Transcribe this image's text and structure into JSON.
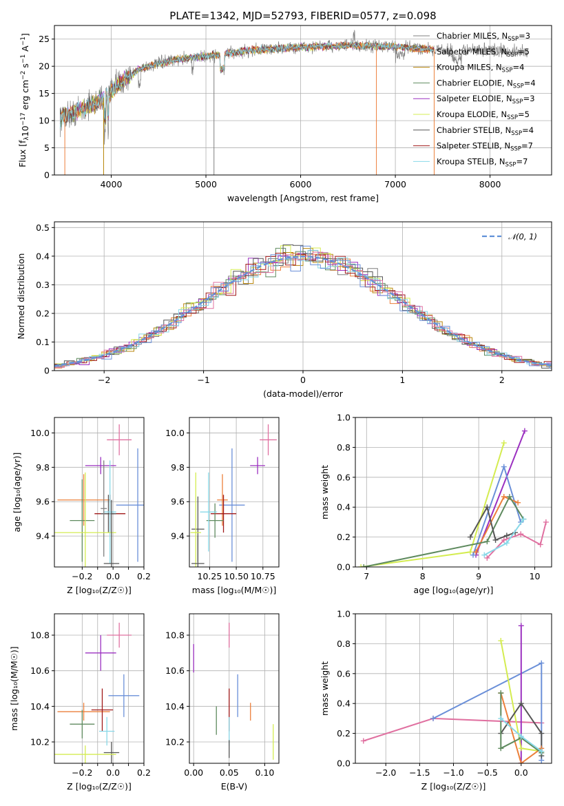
{
  "figure": {
    "title": "PLATE=1342, MJD=52793, FIBERID=0577, z=0.098"
  },
  "colors": {
    "chabrier_miles": "#7f7f7f",
    "salpeter_miles": "#ec7f3a",
    "kroupa_miles": "#b8860b",
    "chabrier_elodie": "#5e8a5e",
    "salpeter_elodie": "#9b30c0",
    "kroupa_elodie": "#d4ec50",
    "chabrier_stelib": "#555555",
    "salpeter_stelib": "#a01818",
    "kroupa_stelib": "#88d8e8",
    "normal_curve": "#6090d8",
    "extra_blue": "#6a8fd8",
    "extra_pink": "#e070a0"
  },
  "chart_data": [
    {
      "id": "spectrum",
      "type": "line",
      "title": "PLATE=1342, MJD=52793, FIBERID=0577, z=0.098",
      "xlabel": "wavelength [Angstrom, rest frame]",
      "ylabel_parts": [
        "Flux [f",
        "λ",
        "10",
        "−17",
        " erg cm",
        "−2",
        " s",
        "−1",
        " A",
        "−1",
        "]"
      ],
      "xlim": [
        3400,
        8650
      ],
      "ylim": [
        0,
        27.5
      ],
      "xticks": [
        4000,
        5000,
        6000,
        7000,
        8000
      ],
      "yticks": [
        0,
        5,
        10,
        15,
        20,
        25
      ],
      "legend": [
        {
          "prefix": "Chabrier MILES, N",
          "sub": "SSP",
          "suffix": "=3",
          "color_key": "chabrier_miles"
        },
        {
          "prefix": "Salpeter MILES, N",
          "sub": "SSP",
          "suffix": "=5",
          "color_key": "salpeter_miles"
        },
        {
          "prefix": "Kroupa MILES, N",
          "sub": "SSP",
          "suffix": "=4",
          "color_key": "kroupa_miles"
        },
        {
          "prefix": "Chabrier ELODIE, N",
          "sub": "SSP",
          "suffix": "=4",
          "color_key": "chabrier_elodie"
        },
        {
          "prefix": "Salpeter ELODIE, N",
          "sub": "SSP",
          "suffix": "=3",
          "color_key": "salpeter_elodie"
        },
        {
          "prefix": "Kroupa ELODIE, N",
          "sub": "SSP",
          "suffix": "=5",
          "color_key": "kroupa_elodie"
        },
        {
          "prefix": "Chabrier STELIB, N",
          "sub": "SSP",
          "suffix": "=4",
          "color_key": "chabrier_stelib"
        },
        {
          "prefix": "Salpeter STELIB, N",
          "sub": "SSP",
          "suffix": "=7",
          "color_key": "salpeter_stelib"
        },
        {
          "prefix": "Kroupa STELIB, N",
          "sub": "SSP",
          "suffix": "=7",
          "color_key": "kroupa_stelib"
        }
      ],
      "continuum": [
        [
          3460,
          10.5
        ],
        [
          3600,
          11.5
        ],
        [
          3800,
          13
        ],
        [
          3950,
          14.5
        ],
        [
          4100,
          17
        ],
        [
          4300,
          19.5
        ],
        [
          4500,
          20.5
        ],
        [
          4800,
          21.5
        ],
        [
          5100,
          22
        ],
        [
          5500,
          23
        ],
        [
          6000,
          23.5
        ],
        [
          6500,
          23.8
        ],
        [
          7000,
          23.6
        ],
        [
          7500,
          23
        ],
        [
          8000,
          23
        ],
        [
          8400,
          22.5
        ]
      ],
      "spectrum_range": [
        3460,
        8400
      ],
      "model_range": [
        3460,
        7410
      ],
      "spikes": [
        {
          "x": 3510,
          "color_key": "salpeter_miles",
          "low": 0
        },
        {
          "x": 3920,
          "color_key": "kroupa_miles",
          "low": 0
        },
        {
          "x": 5085,
          "color_key": "chabrier_miles",
          "low": 0
        },
        {
          "x": 6800,
          "color_key": "salpeter_miles",
          "low": 0
        },
        {
          "x": 7410,
          "color_key": "salpeter_miles",
          "low": 0
        }
      ]
    },
    {
      "id": "residuals",
      "type": "bar",
      "xlabel": "(data-model)/error",
      "ylabel": "Normed distribution",
      "xlim": [
        -2.5,
        2.5
      ],
      "ylim": [
        0,
        0.52
      ],
      "xticks": [
        -2,
        -1,
        0,
        1,
        2
      ],
      "xtick_labels": [
        "−2",
        "−1",
        "0",
        "1",
        "2"
      ],
      "yticks": [
        0.0,
        0.1,
        0.2,
        0.3,
        0.4,
        0.5
      ],
      "legend": [
        {
          "label": "𝒩(0, 1)",
          "color_key": "normal_curve"
        }
      ],
      "bin_width": 0.1
    },
    {
      "id": "age_vs_Z",
      "type": "scatter",
      "xlabel": "Z [log₁₀(Z/Z☉)]",
      "ylabel": "age  [log₁₀(age/yr)]",
      "xlim": [
        -0.38,
        0.2
      ],
      "ylim": [
        9.22,
        10.09
      ],
      "xticks": [
        -0.2,
        -0.1,
        0.0,
        0.1,
        0.2
      ],
      "xtick_labels": [
        "−0.2",
        "",
        "0.0",
        "",
        "0.2"
      ],
      "yticks": [
        9.4,
        9.6,
        9.8,
        10.0
      ],
      "ytick_labels": [
        "9.4",
        "9.6",
        "9.8",
        "10.0"
      ],
      "points": [
        {
          "x": 0.04,
          "y": 9.96,
          "xerr": 0.08,
          "yerr": 0.09,
          "color_key": "extra_pink"
        },
        {
          "x": -0.08,
          "y": 9.81,
          "xerr": 0.1,
          "yerr": 0.05,
          "color_key": "salpeter_elodie"
        },
        {
          "x": 0.16,
          "y": 9.58,
          "xerr": 0.14,
          "yerr": 0.33,
          "color_key": "extra_blue"
        },
        {
          "x": -0.19,
          "y": 9.61,
          "xerr": 0.17,
          "yerr": 0.15,
          "color_key": "salpeter_miles"
        },
        {
          "x": -0.02,
          "y": 9.53,
          "xerr": 0.1,
          "yerr": 0.11,
          "color_key": "salpeter_stelib"
        },
        {
          "x": -0.2,
          "y": 9.49,
          "xerr": 0.08,
          "yerr": 0.24,
          "color_key": "chabrier_elodie"
        },
        {
          "x": -0.03,
          "y": 9.53,
          "xerr": 0.05,
          "yerr": 0.11,
          "color_key": "chabrier_stelib"
        },
        {
          "x": -0.02,
          "y": 9.54,
          "xerr": 0.04,
          "yerr": 0.3,
          "color_key": "kroupa_stelib"
        },
        {
          "x": -0.06,
          "y": 9.56,
          "xerr": 0.02,
          "yerr": 0.28,
          "color_key": "chabrier_miles"
        },
        {
          "x": -0.18,
          "y": 9.42,
          "xerr": 0.2,
          "yerr": 0.35,
          "color_key": "kroupa_elodie"
        },
        {
          "x": -0.01,
          "y": 9.24,
          "xerr": 0.05,
          "yerr": 0.37,
          "color_key": "chabrier_stelib"
        }
      ]
    },
    {
      "id": "age_vs_mass",
      "type": "scatter",
      "xlabel": "mass [log₁₀(M/M☉)]",
      "ylabel": "",
      "xlim": [
        10.06,
        10.9
      ],
      "ylim": [
        9.22,
        10.09
      ],
      "xticks": [
        10.25,
        10.5,
        10.75
      ],
      "xtick_labels": [
        "10.25",
        "10.50",
        "10.75"
      ],
      "yticks": [
        9.4,
        9.6,
        9.8,
        10.0
      ],
      "ytick_labels": [
        "9.4",
        "9.6",
        "9.8",
        "10.0"
      ],
      "points": [
        {
          "x": 10.8,
          "y": 9.96,
          "xerr": 0.08,
          "yerr": 0.09,
          "color_key": "extra_pink"
        },
        {
          "x": 10.7,
          "y": 9.81,
          "xerr": 0.07,
          "yerr": 0.05,
          "color_key": "salpeter_elodie"
        },
        {
          "x": 10.46,
          "y": 9.58,
          "xerr": 0.12,
          "yerr": 0.33,
          "color_key": "extra_blue"
        },
        {
          "x": 10.37,
          "y": 9.61,
          "xerr": 0.05,
          "yerr": 0.15,
          "color_key": "salpeter_miles"
        },
        {
          "x": 10.38,
          "y": 9.53,
          "xerr": 0.12,
          "yerr": 0.11,
          "color_key": "salpeter_stelib"
        },
        {
          "x": 10.3,
          "y": 9.49,
          "xerr": 0.08,
          "yerr": 0.1,
          "color_key": "chabrier_elodie"
        },
        {
          "x": 10.14,
          "y": 9.44,
          "xerr": 0.06,
          "yerr": 0.19,
          "color_key": "chabrier_stelib"
        },
        {
          "x": 10.24,
          "y": 9.54,
          "xerr": 0.08,
          "yerr": 0.23,
          "color_key": "kroupa_stelib"
        },
        {
          "x": 10.12,
          "y": 9.42,
          "xerr": 0.05,
          "yerr": 0.35,
          "color_key": "kroupa_elodie"
        },
        {
          "x": 10.14,
          "y": 9.24,
          "xerr": 0.06,
          "yerr": 0.16,
          "color_key": "chabrier_stelib"
        }
      ]
    },
    {
      "id": "weight_vs_age",
      "type": "line",
      "xlabel": "age  [log₁₀(age/yr)]",
      "ylabel": "mass weight",
      "xlim": [
        6.8,
        10.3
      ],
      "ylim": [
        0,
        1
      ],
      "xticks": [
        7,
        8,
        9,
        10
      ],
      "yticks": [
        0.0,
        0.2,
        0.4,
        0.6,
        0.8,
        1.0
      ],
      "ytick_labels": [
        "0.0",
        "0.2",
        "0.4",
        "0.6",
        "0.8",
        "1.0"
      ],
      "series": [
        {
          "color_key": "salpeter_elodie",
          "points": [
            [
              8.95,
              0.08
            ],
            [
              9.82,
              0.91
            ]
          ]
        },
        {
          "color_key": "kroupa_elodie",
          "points": [
            [
              6.9,
              0.0
            ],
            [
              8.85,
              0.1
            ],
            [
              9.45,
              0.83
            ]
          ]
        },
        {
          "color_key": "extra_blue",
          "points": [
            [
              8.9,
              0.08
            ],
            [
              9.45,
              0.67
            ],
            [
              9.75,
              0.3
            ]
          ]
        },
        {
          "color_key": "salpeter_miles",
          "points": [
            [
              8.95,
              0.1
            ],
            [
              9.45,
              0.47
            ],
            [
              9.7,
              0.43
            ]
          ]
        },
        {
          "color_key": "chabrier_elodie",
          "points": [
            [
              6.95,
              0.0
            ],
            [
              9.15,
              0.17
            ],
            [
              9.55,
              0.47
            ],
            [
              9.8,
              0.32
            ]
          ]
        },
        {
          "color_key": "chabrier_stelib",
          "points": [
            [
              8.85,
              0.2
            ],
            [
              9.15,
              0.4
            ],
            [
              9.3,
              0.18
            ],
            [
              9.5,
              0.21
            ],
            [
              9.65,
              0.23
            ]
          ]
        },
        {
          "color_key": "extra_pink",
          "points": [
            [
              9.15,
              0.06
            ],
            [
              9.45,
              0.18
            ],
            [
              9.75,
              0.22
            ],
            [
              10.1,
              0.15
            ],
            [
              10.2,
              0.3
            ]
          ]
        },
        {
          "color_key": "kroupa_stelib",
          "points": [
            [
              9.1,
              0.08
            ],
            [
              9.5,
              0.16
            ],
            [
              9.8,
              0.32
            ]
          ]
        }
      ]
    },
    {
      "id": "mass_vs_Z",
      "type": "scatter",
      "xlabel": "Z [log₁₀(Z/Z☉)]",
      "ylabel": "mass [log₁₀(M/M☉)]",
      "xlim": [
        -0.38,
        0.2
      ],
      "ylim": [
        10.08,
        10.92
      ],
      "xticks": [
        -0.2,
        -0.1,
        0.0,
        0.1,
        0.2
      ],
      "xtick_labels": [
        "−0.2",
        "",
        "0.0",
        "",
        "0.2"
      ],
      "yticks": [
        10.2,
        10.4,
        10.6,
        10.8
      ],
      "ytick_labels": [
        "10.2",
        "10.4",
        "10.6",
        "10.8"
      ],
      "points": [
        {
          "x": 0.04,
          "y": 10.8,
          "xerr": 0.08,
          "yerr": 0.07,
          "color_key": "extra_pink"
        },
        {
          "x": -0.08,
          "y": 10.7,
          "xerr": 0.1,
          "yerr": 0.1,
          "color_key": "salpeter_elodie"
        },
        {
          "x": 0.07,
          "y": 10.46,
          "xerr": 0.1,
          "yerr": 0.12,
          "color_key": "extra_blue"
        },
        {
          "x": -0.19,
          "y": 10.37,
          "xerr": 0.17,
          "yerr": 0.05,
          "color_key": "salpeter_miles"
        },
        {
          "x": -0.07,
          "y": 10.38,
          "xerr": 0.07,
          "yerr": 0.12,
          "color_key": "salpeter_stelib"
        },
        {
          "x": -0.2,
          "y": 10.3,
          "xerr": 0.08,
          "yerr": 0.08,
          "color_key": "chabrier_elodie"
        },
        {
          "x": -0.04,
          "y": 10.26,
          "xerr": 0.05,
          "yerr": 0.08,
          "color_key": "kroupa_stelib"
        },
        {
          "x": -0.01,
          "y": 10.14,
          "xerr": 0.05,
          "yerr": 0.06,
          "color_key": "chabrier_stelib"
        },
        {
          "x": -0.18,
          "y": 10.13,
          "xerr": 0.2,
          "yerr": 0.05,
          "color_key": "kroupa_elodie"
        }
      ]
    },
    {
      "id": "mass_vs_EBV",
      "type": "scatter",
      "xlabel": "E(B-V)",
      "ylabel": "",
      "xlim": [
        -0.006,
        0.12
      ],
      "ylim": [
        10.08,
        10.92
      ],
      "xticks": [
        0.0,
        0.05,
        0.1
      ],
      "xtick_labels": [
        "0.00",
        "0.05",
        "0.10"
      ],
      "yticks": [
        10.2,
        10.4,
        10.6,
        10.8
      ],
      "ytick_labels": [
        "10.2",
        "10.4",
        "10.6",
        "10.8"
      ],
      "points": [
        {
          "x": 0.05,
          "y": 10.8,
          "xerr": 0,
          "yerr": 0.07,
          "color_key": "extra_pink"
        },
        {
          "x": 0.0,
          "y": 10.67,
          "xerr": 0,
          "yerr": 0.08,
          "color_key": "salpeter_elodie"
        },
        {
          "x": 0.062,
          "y": 10.46,
          "xerr": 0,
          "yerr": 0.12,
          "color_key": "extra_blue"
        },
        {
          "x": 0.08,
          "y": 10.37,
          "xerr": 0,
          "yerr": 0.05,
          "color_key": "salpeter_miles"
        },
        {
          "x": 0.05,
          "y": 10.38,
          "xerr": 0,
          "yerr": 0.12,
          "color_key": "salpeter_stelib"
        },
        {
          "x": 0.032,
          "y": 10.32,
          "xerr": 0,
          "yerr": 0.08,
          "color_key": "chabrier_elodie"
        },
        {
          "x": 0.05,
          "y": 10.26,
          "xerr": 0,
          "yerr": 0.08,
          "color_key": "kroupa_stelib"
        },
        {
          "x": 0.05,
          "y": 10.16,
          "xerr": 0,
          "yerr": 0.05,
          "color_key": "chabrier_stelib"
        },
        {
          "x": 0.112,
          "y": 10.2,
          "xerr": 0,
          "yerr": 0.1,
          "color_key": "kroupa_elodie"
        }
      ]
    },
    {
      "id": "weight_vs_Z",
      "type": "line",
      "xlabel": "Z [log₁₀(Z/Z☉)]",
      "ylabel": "mass weight",
      "xlim": [
        -2.45,
        0.45
      ],
      "ylim": [
        0,
        1
      ],
      "xticks": [
        -2.0,
        -1.5,
        -1.0,
        -0.5,
        0.0
      ],
      "xtick_labels": [
        "−2.0",
        "−1.5",
        "−1.0",
        "−0.5",
        "0.0"
      ],
      "yticks": [
        0.0,
        0.2,
        0.4,
        0.6,
        0.8,
        1.0
      ],
      "ytick_labels": [
        "0.0",
        "0.2",
        "0.4",
        "0.6",
        "0.8",
        "1.0"
      ],
      "series": [
        {
          "color_key": "extra_pink",
          "points": [
            [
              -2.33,
              0.15
            ],
            [
              -1.3,
              0.3
            ],
            [
              0.3,
              0.27
            ]
          ]
        },
        {
          "color_key": "extra_blue",
          "points": [
            [
              -1.3,
              0.3
            ],
            [
              0.3,
              0.67
            ],
            [
              0.3,
              0.02
            ]
          ]
        },
        {
          "color_key": "salpeter_elodie",
          "points": [
            [
              0.0,
              0.0
            ],
            [
              0.0,
              0.92
            ]
          ]
        },
        {
          "color_key": "kroupa_elodie",
          "points": [
            [
              -0.3,
              0.82
            ],
            [
              0.0,
              0.1
            ],
            [
              0.3,
              0.08
            ]
          ]
        },
        {
          "color_key": "chabrier_stelib",
          "points": [
            [
              -0.3,
              0.2
            ],
            [
              0.0,
              0.4
            ],
            [
              0.3,
              0.2
            ],
            [
              0.3,
              0.05
            ]
          ]
        },
        {
          "color_key": "salpeter_miles",
          "points": [
            [
              -0.3,
              0.47
            ],
            [
              0.0,
              0.0
            ],
            [
              0.3,
              0.1
            ]
          ]
        },
        {
          "color_key": "chabrier_elodie",
          "points": [
            [
              -0.3,
              0.47
            ],
            [
              -0.3,
              0.1
            ],
            [
              0.0,
              0.17
            ],
            [
              0.3,
              0.07
            ]
          ]
        },
        {
          "color_key": "kroupa_stelib",
          "points": [
            [
              -0.3,
              0.3
            ],
            [
              0.0,
              0.18
            ],
            [
              0.3,
              0.08
            ]
          ]
        }
      ]
    }
  ]
}
